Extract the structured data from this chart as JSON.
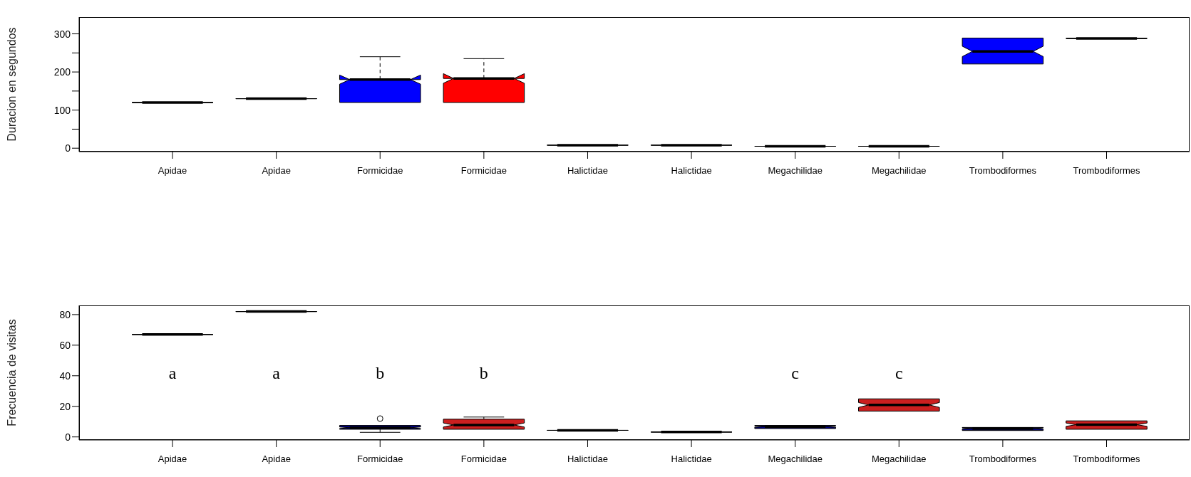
{
  "chart_data": [
    {
      "type": "box",
      "ylabel": "Duracion en segundos",
      "categories": [
        "Apidae",
        "Apidae",
        "Formicidae",
        "Formicidae",
        "Halictidae",
        "Halictidae",
        "Megachilidae",
        "Megachilidae",
        "Trombodiformes",
        "Trombodiformes"
      ],
      "boxes": [
        {
          "low": 120,
          "q1": 120,
          "median": 120,
          "q3": 120,
          "high": 120
        },
        {
          "low": 130,
          "q1": 130,
          "median": 130,
          "q3": 130,
          "high": 130
        },
        {
          "low": 120,
          "q1": 120,
          "median": 180,
          "q3": 180,
          "high": 240
        },
        {
          "low": 120,
          "q1": 120,
          "median": 183,
          "q3": 183,
          "high": 235
        },
        {
          "low": 8,
          "q1": 8,
          "median": 8,
          "q3": 8,
          "high": 8
        },
        {
          "low": 8,
          "q1": 8,
          "median": 8,
          "q3": 8,
          "high": 8
        },
        {
          "low": 5,
          "q1": 5,
          "median": 5,
          "q3": 5,
          "high": 5
        },
        {
          "low": 5,
          "q1": 5,
          "median": 5,
          "q3": 5,
          "high": 5
        },
        {
          "low": 221,
          "q1": 221,
          "median": 254,
          "q3": 289,
          "high": 289
        },
        {
          "low": 288,
          "q1": 288,
          "median": 288,
          "q3": 288,
          "high": 288
        }
      ],
      "colors": [
        "#000000",
        "#000000",
        "#0000ff",
        "#ff0000",
        "#000000",
        "#000000",
        "#000000",
        "#000000",
        "#0000ff",
        "#000000"
      ],
      "ylim": [
        -9,
        344
      ],
      "yticks": [
        0,
        {
          "value": 50,
          "label": null
        },
        100,
        {
          "value": 150,
          "label": null
        },
        200,
        {
          "value": 250,
          "label": null
        },
        300
      ]
    },
    {
      "type": "box",
      "ylabel": "Frecuencia de visitas",
      "categories": [
        "Apidae",
        "Apidae",
        "Formicidae",
        "Formicidae",
        "Halictidae",
        "Halictidae",
        "Megachilidae",
        "Megachilidae",
        "Trombodiformes",
        "Trombodiformes"
      ],
      "boxes": [
        {
          "low": 67,
          "q1": 67,
          "median": 67,
          "q3": 67,
          "high": 67
        },
        {
          "low": 82,
          "q1": 82,
          "median": 82,
          "q3": 82,
          "high": 82
        },
        {
          "low": 3,
          "q1": 5,
          "median": 6,
          "q3": 7.5,
          "high": 7.5,
          "outliers": [
            12
          ]
        },
        {
          "low": 5,
          "q1": 5,
          "median": 7.8,
          "q3": 11.6,
          "high": 13
        },
        {
          "low": 4.3,
          "q1": 4.3,
          "median": 4.3,
          "q3": 4.3,
          "high": 4.3
        },
        {
          "low": 3.2,
          "q1": 3.2,
          "median": 3.2,
          "q3": 3.2,
          "high": 3.2
        },
        {
          "low": 5.5,
          "q1": 5.5,
          "median": 6.7,
          "q3": 7.5,
          "high": 7.5
        },
        {
          "low": 16.9,
          "q1": 16.9,
          "median": 20.9,
          "q3": 24.9,
          "high": 24.9
        },
        {
          "low": 4.2,
          "q1": 4.2,
          "median": 5.5,
          "q3": 6.2,
          "high": 6.2
        },
        {
          "low": 5,
          "q1": 5,
          "median": 8,
          "q3": 10.5,
          "high": 10.5
        }
      ],
      "colors": [
        "#000000",
        "#000000",
        "#000080",
        "#cc1f1f",
        "#000000",
        "#000000",
        "#000080",
        "#cc1f1f",
        "#000080",
        "#cc1f1f"
      ],
      "ylim": [
        -2,
        86
      ],
      "yticks": [
        0,
        20,
        40,
        60,
        80
      ],
      "annotations": [
        "a",
        "a",
        "b",
        "b",
        "c",
        "c"
      ]
    }
  ]
}
